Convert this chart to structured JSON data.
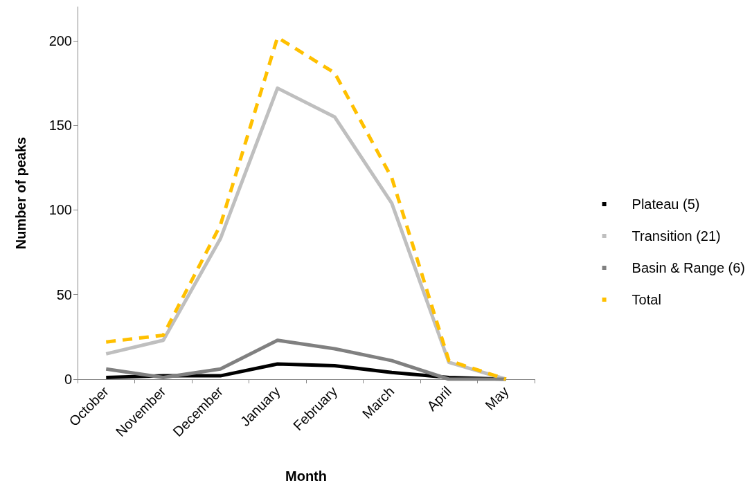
{
  "chart_data": {
    "type": "line",
    "xlabel": "Month",
    "ylabel": "Number of peaks",
    "categories": [
      "October",
      "November",
      "December",
      "January",
      "February",
      "March",
      "April",
      "May"
    ],
    "series": [
      {
        "name": "Plateau (5)",
        "color": "#000000",
        "values": [
          1,
          2,
          2,
          9,
          8,
          4,
          1,
          0
        ]
      },
      {
        "name": "Transition (21)",
        "color": "#bfbfbf",
        "values": [
          15,
          23,
          83,
          172,
          155,
          104,
          10,
          0
        ]
      },
      {
        "name": "Basin & Range (6)",
        "color": "#808080",
        "values": [
          6,
          1,
          6,
          23,
          18,
          11,
          0,
          0
        ]
      },
      {
        "name": "Total",
        "color": "#ffc000",
        "line_style": "dashed",
        "values": [
          22,
          26,
          91,
          202,
          181,
          119,
          11,
          0
        ]
      }
    ],
    "ylim": [
      0,
      220
    ],
    "yticks": [
      0,
      50,
      100,
      150,
      200
    ],
    "grid": false,
    "legend": "right",
    "marker": "none"
  }
}
